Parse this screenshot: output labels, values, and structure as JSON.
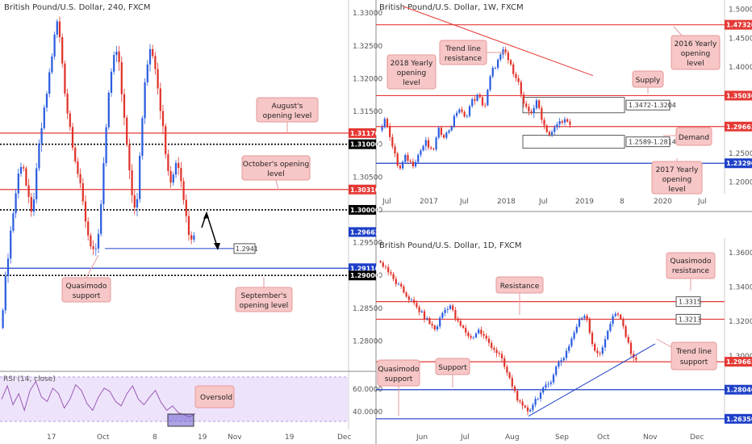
{
  "chart_data": [
    {
      "id": "h4",
      "type": "candlestick",
      "title": "British Pound/U.S. Dollar, 240, FXCM",
      "ylim": [
        1.276,
        1.331
      ],
      "x_ticks": [
        "17",
        "Oct",
        "8",
        "19",
        "Nov",
        "19",
        "Dec"
      ],
      "y_ticks": [
        "1.33000",
        "1.32500",
        "1.32000",
        "1.31500",
        "1.31000",
        "1.30500",
        "1.30000",
        "1.29500",
        "1.29000",
        "1.28500",
        "1.28000"
      ],
      "close_path": [
        1.282,
        1.288,
        1.295,
        1.3,
        1.305,
        1.308,
        1.303,
        1.299,
        1.304,
        1.311,
        1.315,
        1.32,
        1.325,
        1.329,
        1.323,
        1.316,
        1.312,
        1.308,
        1.304,
        1.3,
        1.296,
        1.294,
        1.293,
        1.302,
        1.312,
        1.32,
        1.325,
        1.322,
        1.315,
        1.309,
        1.302,
        1.3,
        1.312,
        1.32,
        1.325,
        1.323,
        1.318,
        1.312,
        1.307,
        1.304,
        1.308,
        1.305,
        1.3,
        1.296,
        1.2966
      ],
      "levels": [
        {
          "value": 1.3117,
          "label": "1.31170",
          "color": "#e53935",
          "style": "solid"
        },
        {
          "value": 1.31,
          "label": "1.31000",
          "color": "#000000",
          "style": "dotted"
        },
        {
          "value": 1.3031,
          "label": "1.30310",
          "color": "#e53935",
          "style": "solid"
        },
        {
          "value": 1.3,
          "label": "1.30000",
          "color": "#000000",
          "style": "dotted"
        },
        {
          "value": 1.2911,
          "label": "1.29110",
          "color": "#1e40c8",
          "style": "solid"
        },
        {
          "value": 1.29,
          "label": "1.29000",
          "color": "#000000",
          "style": "dotted"
        }
      ],
      "current_price": {
        "value": 1.29662,
        "label": "1.29662"
      },
      "box_label": {
        "value": 1.2941,
        "label": "1.2941"
      },
      "annotations": [
        {
          "text": [
            "August's",
            "opening level"
          ]
        },
        {
          "text": [
            "October's opening",
            "level"
          ]
        },
        {
          "text": [
            "Quasimodo",
            "support"
          ]
        },
        {
          "text": [
            "September's",
            "opening level"
          ]
        }
      ],
      "rsi": {
        "title": "RSI (14, close)",
        "y_ticks": [
          "60.0000",
          "40.0000"
        ],
        "annotation": "Oversold",
        "values": [
          50,
          62,
          45,
          55,
          40,
          58,
          66,
          52,
          48,
          60,
          55,
          42,
          50,
          63,
          58,
          46,
          40,
          52,
          60,
          57,
          48,
          44,
          55,
          62,
          50,
          45,
          52,
          58,
          47,
          40,
          44,
          38,
          36,
          34,
          37
        ]
      }
    },
    {
      "id": "w1",
      "type": "candlestick",
      "title": "British Pound/U.S. Dollar, 1W, FXCM",
      "ylim": [
        1.18,
        1.505
      ],
      "x_ticks": [
        "Jul",
        "2017",
        "Jul",
        "2018",
        "Jul",
        "2019",
        "8",
        "2020",
        "Jul"
      ],
      "y_ticks": [
        "1.50000",
        "1.45000",
        "1.40000",
        "1.35000",
        "1.30000",
        "1.25000",
        "1.20000"
      ],
      "close_path": [
        1.29,
        1.31,
        1.26,
        1.22,
        1.245,
        1.23,
        1.25,
        1.27,
        1.25,
        1.29,
        1.28,
        1.3,
        1.33,
        1.31,
        1.34,
        1.35,
        1.33,
        1.39,
        1.41,
        1.43,
        1.4,
        1.38,
        1.33,
        1.32,
        1.34,
        1.3,
        1.28,
        1.3,
        1.31,
        1.2966
      ],
      "levels": [
        {
          "value": 1.4732,
          "label": "1.47320",
          "color": "#e53935"
        },
        {
          "value": 1.3503,
          "label": "1.35030",
          "color": "#e53935"
        },
        {
          "value": 1.29662,
          "label": "1.29662",
          "color": "#e53935"
        },
        {
          "value": 1.2329,
          "label": "1.23290",
          "color": "#1e40c8"
        }
      ],
      "zones": [
        {
          "label": "1.3472-1.3204",
          "top": 1.3472,
          "bottom": 1.3204
        },
        {
          "label": "1.2589-1.2814",
          "top": 1.2814,
          "bottom": 1.2589
        }
      ],
      "annotations": [
        {
          "text": [
            "Trend line",
            "resistance"
          ]
        },
        {
          "text": [
            "2018 Yearly",
            "opening",
            "level"
          ]
        },
        {
          "text": [
            "2016 Yearly",
            "opening",
            "level"
          ]
        },
        {
          "text": [
            "Supply"
          ]
        },
        {
          "text": [
            "Demand"
          ]
        },
        {
          "text": [
            "2017 Yearly",
            "opening",
            "level"
          ]
        }
      ]
    },
    {
      "id": "d1",
      "type": "candlestick",
      "title": "British Pound/U.S. Dollar, 1D, FXCM",
      "ylim": [
        1.262,
        1.366
      ],
      "x_ticks": [
        "Jun",
        "Jul",
        "Aug",
        "Sep",
        "Oct",
        "Nov",
        "Dec"
      ],
      "y_ticks": [
        "1.36000",
        "1.34000",
        "1.32000",
        "1.30000",
        "1.28000"
      ],
      "close_path": [
        1.355,
        1.352,
        1.345,
        1.34,
        1.335,
        1.33,
        1.325,
        1.32,
        1.315,
        1.325,
        1.33,
        1.32,
        1.315,
        1.31,
        1.315,
        1.31,
        1.305,
        1.3,
        1.29,
        1.28,
        1.27,
        1.268,
        1.275,
        1.28,
        1.285,
        1.295,
        1.3,
        1.31,
        1.32,
        1.325,
        1.305,
        1.3,
        1.315,
        1.325,
        1.32,
        1.305,
        1.2966
      ],
      "levels": [
        {
          "value": 1.3315,
          "label": "1.3315",
          "color": "#e53935"
        },
        {
          "value": 1.3213,
          "label": "1.3213",
          "color": "#e53935"
        },
        {
          "value": 1.29662,
          "label": "1.29662",
          "color": "#e53935"
        },
        {
          "value": 1.2804,
          "label": "1.28040",
          "color": "#1e40c8"
        },
        {
          "value": 1.2635,
          "label": "1.26350",
          "color": "#1e40c8"
        }
      ],
      "annotations": [
        {
          "text": [
            "Resistance"
          ]
        },
        {
          "text": [
            "Quasimodo",
            "resistance"
          ]
        },
        {
          "text": [
            "Trend line",
            "support"
          ]
        },
        {
          "text": [
            "Quasimodo",
            "support"
          ]
        },
        {
          "text": [
            "Support"
          ]
        }
      ]
    }
  ]
}
